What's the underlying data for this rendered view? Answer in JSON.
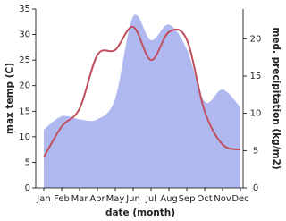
{
  "chart_data": {
    "type": "line-area",
    "x_label": "date (month)",
    "y_label": "max temp (C)",
    "y2_label": "med. precipitation (kg/m2)",
    "categories": [
      "Jan",
      "Feb",
      "Mar",
      "Apr",
      "May",
      "Jun",
      "Jul",
      "Aug",
      "Sep",
      "Oct",
      "Nov",
      "Dec"
    ],
    "series": [
      {
        "name": "max temp",
        "color": "#c0505e",
        "values": [
          6,
          12,
          15.5,
          26,
          27,
          31.5,
          25,
          30.5,
          29,
          15,
          8.5,
          7.5
        ]
      },
      {
        "name": "med. precipitation",
        "color": "#b0b8f0",
        "axis": "y2",
        "values": [
          7.8,
          9.6,
          9.2,
          9.2,
          12,
          23,
          19.8,
          21.9,
          18.6,
          11.6,
          13.2,
          10.8
        ]
      }
    ],
    "ylim": [
      0,
      35
    ],
    "yticks": [
      0,
      5,
      10,
      15,
      20,
      25,
      30,
      35
    ],
    "y2lim": [
      0,
      24
    ],
    "y2ticks": [
      0,
      5,
      10,
      15,
      20
    ]
  }
}
